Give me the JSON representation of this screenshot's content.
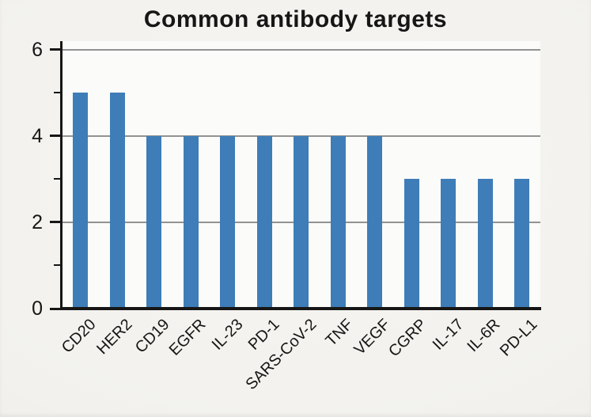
{
  "chart_data": {
    "type": "bar",
    "title": "Common antibody targets",
    "categories": [
      "CD20",
      "HER2",
      "CD19",
      "EGFR",
      "IL-23",
      "PD-1",
      "SARS-CoV-2",
      "TNF",
      "VEGF",
      "CGRP",
      "IL-17",
      "IL-6R",
      "PD-L1"
    ],
    "values": [
      5,
      5,
      4,
      4,
      4,
      4,
      4,
      4,
      4,
      3,
      3,
      3,
      3
    ],
    "xlabel": "",
    "ylabel": "",
    "ylim": [
      0,
      6.2
    ],
    "yticks_major": [
      0,
      2,
      4,
      6
    ],
    "yticks_minor": [
      1,
      3,
      5
    ],
    "grid": "horizontal gridlines at major ticks only",
    "legend": "none",
    "x_label_rotation_deg": 45,
    "colors": {
      "bar": "#3e7db8",
      "grid": "#929292",
      "axis": "#161616",
      "text": "#161616",
      "background": "#f2f1ed",
      "plot_background": "#fbfbf9"
    }
  }
}
